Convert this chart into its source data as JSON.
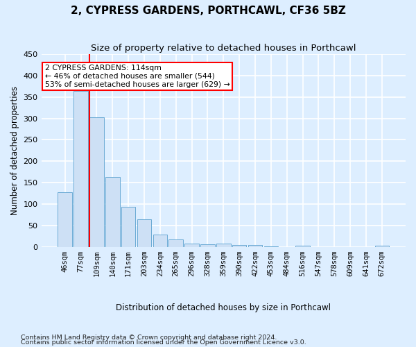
{
  "title": "2, CYPRESS GARDENS, PORTHCAWL, CF36 5BZ",
  "subtitle": "Size of property relative to detached houses in Porthcawl",
  "xlabel": "Distribution of detached houses by size in Porthcawl",
  "ylabel": "Number of detached properties",
  "bar_labels": [
    "46sqm",
    "77sqm",
    "109sqm",
    "140sqm",
    "171sqm",
    "203sqm",
    "234sqm",
    "265sqm",
    "296sqm",
    "328sqm",
    "359sqm",
    "390sqm",
    "422sqm",
    "453sqm",
    "484sqm",
    "516sqm",
    "547sqm",
    "578sqm",
    "609sqm",
    "641sqm",
    "672sqm"
  ],
  "bar_values": [
    127,
    365,
    303,
    163,
    93,
    65,
    29,
    17,
    8,
    6,
    8,
    4,
    4,
    1,
    0,
    3,
    0,
    0,
    0,
    0,
    3
  ],
  "bar_color": "#cde0f5",
  "bar_edge_color": "#6aaad4",
  "vline_color": "red",
  "vline_index": 2,
  "annotation_text": "2 CYPRESS GARDENS: 114sqm\n← 46% of detached houses are smaller (544)\n53% of semi-detached houses are larger (629) →",
  "ylim": [
    0,
    450
  ],
  "yticks": [
    0,
    50,
    100,
    150,
    200,
    250,
    300,
    350,
    400,
    450
  ],
  "bg_color": "#ddeeff",
  "fig_bg_color": "#ddeeff",
  "grid_color": "white",
  "footer_line1": "Contains HM Land Registry data © Crown copyright and database right 2024.",
  "footer_line2": "Contains public sector information licensed under the Open Government Licence v3.0."
}
